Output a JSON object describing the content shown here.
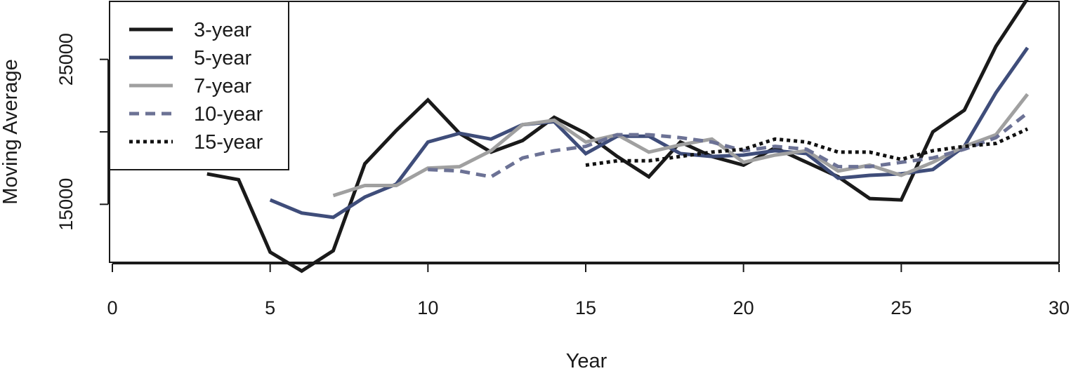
{
  "chart_data": {
    "type": "line",
    "xlabel": "Year",
    "ylabel": "Moving Average",
    "xlim": [
      0,
      30
    ],
    "ylim": [
      11000,
      29000
    ],
    "x_ticks": [
      0,
      5,
      10,
      15,
      20,
      25,
      30
    ],
    "y_ticks": [
      15000,
      25000
    ],
    "y_minor_ticks": [
      20000
    ],
    "grid": false,
    "legend_position": "top-left",
    "series": [
      {
        "name": "3-year",
        "color": "#1a1a1a",
        "dash": "solid",
        "x": [
          3,
          4,
          5,
          6,
          7,
          8,
          9,
          10,
          11,
          12,
          13,
          14,
          15,
          16,
          17,
          18,
          19,
          20,
          21,
          22,
          23,
          24,
          25,
          26,
          27,
          28,
          29
        ],
        "y": [
          17100,
          16700,
          11700,
          10400,
          11800,
          17800,
          20100,
          22200,
          19900,
          18600,
          19400,
          21000,
          19900,
          18300,
          16900,
          19300,
          18300,
          17700,
          18900,
          17900,
          16900,
          15400,
          15300,
          20000,
          21500,
          25900,
          29200
        ]
      },
      {
        "name": "5-year",
        "color": "#3f4d7a",
        "dash": "solid",
        "x": [
          5,
          6,
          7,
          8,
          9,
          10,
          11,
          12,
          13,
          14,
          15,
          16,
          17,
          18,
          19,
          20,
          21,
          22,
          23,
          24,
          25,
          26,
          27,
          28,
          29
        ],
        "y": [
          15300,
          14400,
          14100,
          15500,
          16400,
          19300,
          19900,
          19500,
          20500,
          20700,
          18500,
          19700,
          19700,
          18500,
          18300,
          18400,
          18700,
          18500,
          16800,
          17000,
          17100,
          17400,
          19000,
          22700,
          25800
        ]
      },
      {
        "name": "7-year",
        "color": "#a0a0a0",
        "dash": "solid",
        "x": [
          7,
          8,
          9,
          10,
          11,
          12,
          13,
          14,
          15,
          16,
          17,
          18,
          19,
          20,
          21,
          22,
          23,
          24,
          25,
          26,
          27,
          28,
          29
        ],
        "y": [
          15600,
          16300,
          16300,
          17500,
          17600,
          18700,
          20500,
          20800,
          19300,
          19800,
          18600,
          19100,
          19500,
          17900,
          18400,
          18700,
          17300,
          17700,
          17000,
          17900,
          19000,
          19800,
          22600
        ]
      },
      {
        "name": "10-year",
        "color": "#6c7295",
        "dash": "dashed",
        "x": [
          10,
          11,
          12,
          13,
          14,
          15,
          16,
          17,
          18,
          19,
          20,
          21,
          22,
          23,
          24,
          25,
          26,
          27,
          28,
          29
        ],
        "y": [
          17400,
          17300,
          16900,
          18200,
          18700,
          19000,
          19800,
          19800,
          19600,
          19300,
          18700,
          19000,
          18800,
          17600,
          17600,
          17900,
          18200,
          18800,
          19600,
          21300
        ]
      },
      {
        "name": "15-year",
        "color": "#111111",
        "dash": "dotted",
        "x": [
          15,
          16,
          17,
          18,
          19,
          20,
          21,
          22,
          23,
          24,
          25,
          26,
          27,
          28,
          29
        ],
        "y": [
          17700,
          18000,
          18000,
          18300,
          18600,
          18800,
          19500,
          19300,
          18600,
          18600,
          18100,
          18700,
          19000,
          19200,
          20200
        ]
      }
    ]
  }
}
